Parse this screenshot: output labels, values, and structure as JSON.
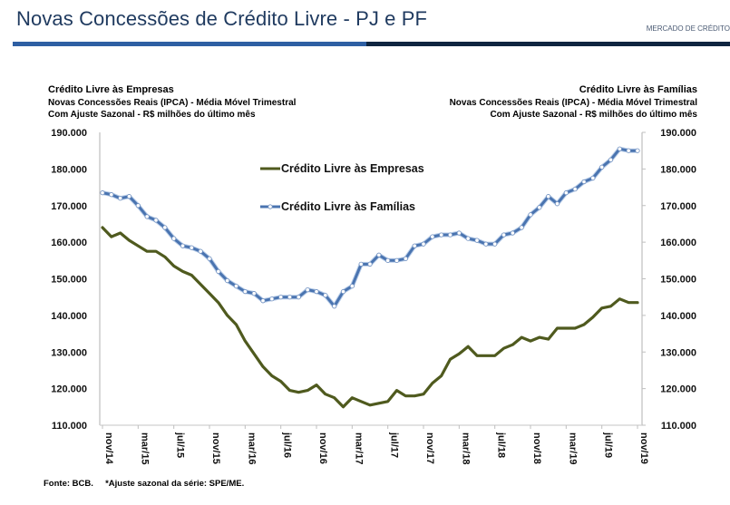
{
  "header": {
    "title": "Novas Concessões de Crédito Livre - PJ e PF",
    "section": "MERCADO DE CRÉDITO"
  },
  "colors": {
    "companies": "#4f5a1e",
    "families": "#4a74b0",
    "title": "#1f3a5f",
    "bar_primary": "#2e5fa3",
    "bar_secondary": "#0f2540"
  },
  "left_header": {
    "title": "Crédito Livre às Empresas",
    "line1": "Novas Concessões Reais (IPCA) - Média Móvel Trimestral",
    "line2": "Com Ajuste Sazonal - R$ milhões do último mês"
  },
  "right_header": {
    "title": "Crédito Livre às Famílias",
    "line1": "Novas Concessões Reais (IPCA) - Média Móvel Trimestral",
    "line2": "Com Ajuste Sazonal - R$ milhões do último mês"
  },
  "footer": {
    "source": "Fonte: BCB.",
    "note": "*Ajuste sazonal da série: SPE/ME."
  },
  "chart_data": {
    "type": "line",
    "title": "Novas Concessões de Crédito Livre - PJ e PF",
    "xlabel": "",
    "ylabel_left": "Crédito Livre às Empresas - R$ milhões",
    "ylabel_right": "Crédito Livre às Famílias - R$ milhões",
    "ylim": [
      110000,
      190000
    ],
    "y_ticks": [
      110000,
      120000,
      130000,
      140000,
      150000,
      160000,
      170000,
      180000,
      190000
    ],
    "y_tick_labels": [
      "110.000",
      "120.000",
      "130.000",
      "140.000",
      "150.000",
      "160.000",
      "170.000",
      "180.000",
      "190.000"
    ],
    "x_start": "nov/14",
    "x_end": "nov/19",
    "x_tick_labels": [
      "nov/14",
      "mar/15",
      "jul/15",
      "nov/15",
      "mar/16",
      "jul/16",
      "nov/16",
      "mar/17",
      "jul/17",
      "nov/17",
      "mar/18",
      "jul/18",
      "nov/18",
      "mar/19",
      "jul/19",
      "nov/19"
    ],
    "x_tick_step_months": 4,
    "grid": false,
    "legend": {
      "placement": "top-center",
      "entries": [
        "Crédito Livre às Empresas",
        "Crédito Livre às Famílias"
      ]
    },
    "series": [
      {
        "name": "Crédito Livre às Empresas",
        "axis": "left",
        "marker": "none",
        "values": [
          164000,
          161500,
          162500,
          160500,
          159000,
          157500,
          157500,
          156000,
          153500,
          152000,
          151000,
          148500,
          146000,
          143500,
          140000,
          137500,
          133000,
          129500,
          126000,
          123500,
          122000,
          119500,
          119000,
          119500,
          121000,
          118500,
          117500,
          115000,
          117500,
          116500,
          115500,
          116000,
          116500,
          119500,
          118000,
          118000,
          118500,
          121500,
          123500,
          128000,
          129500,
          131500,
          129000,
          129000,
          129000,
          131000,
          132000,
          134000,
          133000,
          134000,
          133500,
          136500,
          136500,
          136500,
          137500,
          139500,
          142000,
          142500,
          144500,
          143500,
          143500
        ]
      },
      {
        "name": "Crédito Livre às Famílias",
        "axis": "right",
        "marker": "circle",
        "values": [
          173500,
          173000,
          172000,
          172500,
          170000,
          167000,
          166000,
          164000,
          161000,
          159000,
          158500,
          157500,
          155500,
          152000,
          149500,
          148000,
          146500,
          146000,
          144000,
          144500,
          145000,
          145000,
          145000,
          147000,
          146500,
          145500,
          142500,
          146500,
          148000,
          154000,
          154000,
          156500,
          155000,
          155000,
          155500,
          159000,
          159500,
          161500,
          162000,
          162000,
          162500,
          161000,
          160500,
          159500,
          159500,
          162000,
          162500,
          164000,
          167500,
          169500,
          172500,
          170500,
          173500,
          174500,
          176500,
          177500,
          180500,
          182500,
          185500,
          185000,
          185000
        ]
      }
    ]
  }
}
